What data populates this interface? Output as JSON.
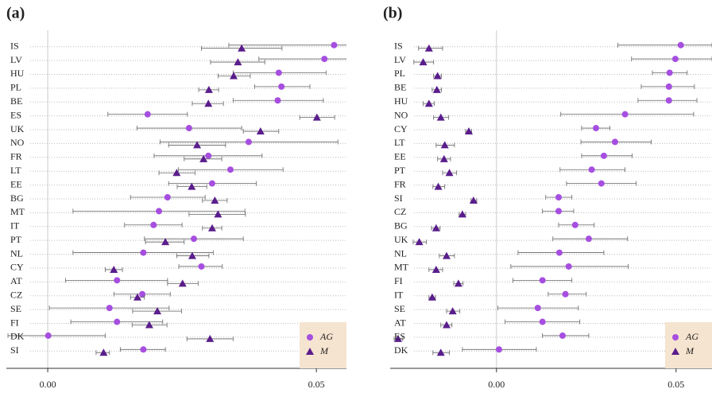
{
  "chart_data": [
    {
      "type": "dot",
      "title": "(a)",
      "categories": [
        "IS",
        "LV",
        "HU",
        "PL",
        "BE",
        "ES",
        "UK",
        "NO",
        "FR",
        "LT",
        "EE",
        "BG",
        "MT",
        "IT",
        "PT",
        "NL",
        "CY",
        "AT",
        "CZ",
        "SE",
        "FI",
        "DK",
        "SI"
      ],
      "series": [
        {
          "name": "AG",
          "color": "#a64ee0",
          "marker": "circle",
          "values": [
            0.0533,
            0.0515,
            0.043,
            0.0435,
            0.0428,
            0.0186,
            0.0263,
            0.0374,
            0.0299,
            0.034,
            0.0306,
            0.0223,
            0.0207,
            0.0197,
            0.0272,
            0.0178,
            0.0286,
            0.0129,
            0.0176,
            0.0115,
            0.0129,
            0.0001,
            0.0178
          ],
          "lower": [
            0.0337,
            0.0393,
            0.0345,
            0.0385,
            0.0345,
            0.0112,
            0.0166,
            0.0209,
            0.0198,
            0.0243,
            0.0225,
            0.0154,
            0.0047,
            0.0143,
            0.018,
            0.0047,
            0.0244,
            0.0033,
            0.0123,
            0.0003,
            0.0043,
            -0.0074,
            0.0135
          ],
          "upper": [
            0.0562,
            0.0562,
            0.0518,
            0.0488,
            0.0513,
            0.026,
            0.0361,
            0.054,
            0.0399,
            0.0438,
            0.0388,
            0.0293,
            0.0367,
            0.025,
            0.0364,
            0.0308,
            0.0325,
            0.0223,
            0.0228,
            0.0226,
            0.0214,
            0.0107,
            0.0219
          ]
        },
        {
          "name": "M",
          "color": "#5a1d8c",
          "marker": "triangle",
          "values": [
            0.0361,
            0.0354,
            0.0346,
            0.03,
            0.0299,
            0.0501,
            0.0396,
            0.0278,
            0.029,
            0.024,
            0.0268,
            0.0311,
            0.0317,
            0.0306,
            0.0219,
            0.0269,
            0.0123,
            0.0251,
            0.0167,
            0.0204,
            0.0189,
            0.0302,
            0.0104
          ],
          "lower": [
            0.0286,
            0.0303,
            0.0317,
            0.0281,
            0.0269,
            0.0469,
            0.0364,
            0.0225,
            0.0254,
            0.0207,
            0.0241,
            0.0288,
            0.0263,
            0.0288,
            0.0182,
            0.024,
            0.0107,
            0.0223,
            0.0154,
            0.0158,
            0.0157,
            0.0259,
            0.009
          ],
          "upper": [
            0.0436,
            0.0404,
            0.0377,
            0.0318,
            0.0327,
            0.0534,
            0.043,
            0.0331,
            0.0324,
            0.0274,
            0.0296,
            0.0334,
            0.0368,
            0.0324,
            0.0254,
            0.03,
            0.0139,
            0.028,
            0.018,
            0.0249,
            0.0222,
            0.0345,
            0.0115
          ]
        }
      ],
      "xlim": [
        -0.0077,
        0.0556
      ],
      "xticks": [
        {
          "value": 0,
          "label": "0.00"
        },
        {
          "value": 0.05,
          "label": "0.05"
        }
      ],
      "grid": true,
      "legend": "lower right",
      "legend_color": "#f5e4cf"
    },
    {
      "type": "dot",
      "title": "(b)",
      "categories": [
        "IS",
        "LV",
        "PL",
        "BE",
        "HU",
        "NO",
        "CY",
        "LT",
        "EE",
        "PT",
        "FR",
        "SI",
        "CZ",
        "BG",
        "UK",
        "NL",
        "MT",
        "FI",
        "IT",
        "SE",
        "AT",
        "ES",
        "DK"
      ],
      "series": [
        {
          "name": "AG",
          "color": "#a64ee0",
          "marker": "circle",
          "values": [
            0.0513,
            0.0498,
            0.0482,
            0.048,
            0.048,
            0.0358,
            0.0277,
            0.033,
            0.0299,
            0.0265,
            0.0292,
            0.0173,
            0.0173,
            0.0219,
            0.0257,
            0.0175,
            0.0201,
            0.0128,
            0.0192,
            0.0115,
            0.0128,
            0.0184,
            0.0007
          ],
          "lower": [
            0.0338,
            0.0376,
            0.0434,
            0.0403,
            0.0394,
            0.0179,
            0.0237,
            0.0235,
            0.0237,
            0.0177,
            0.0195,
            0.0137,
            0.0128,
            0.0173,
            0.0157,
            0.006,
            0.004,
            0.0046,
            0.0144,
            0.0004,
            0.0024,
            0.0128,
            -0.0095
          ],
          "upper": [
            0.06,
            0.06,
            0.0531,
            0.0551,
            0.0558,
            0.0549,
            0.0316,
            0.0431,
            0.0378,
            0.0358,
            0.0389,
            0.021,
            0.0215,
            0.0272,
            0.0365,
            0.0299,
            0.0367,
            0.021,
            0.025,
            0.0228,
            0.0232,
            0.0257,
            0.0111
          ]
        },
        {
          "name": "M",
          "color": "#5a1d8c",
          "marker": "triangle",
          "values": [
            -0.0188,
            -0.0204,
            -0.0164,
            -0.0166,
            -0.0188,
            -0.0155,
            -0.0077,
            -0.0144,
            -0.0146,
            -0.0131,
            -0.0162,
            -0.0064,
            -0.0095,
            -0.0168,
            -0.0215,
            -0.0139,
            -0.0168,
            -0.0106,
            -0.0179,
            -0.0122,
            -0.0139,
            -0.0274,
            -0.0155
          ],
          "lower": [
            -0.0217,
            -0.023,
            -0.0175,
            -0.0179,
            -0.0204,
            -0.0175,
            -0.0086,
            -0.0168,
            -0.0164,
            -0.015,
            -0.0177,
            -0.0071,
            -0.0104,
            -0.0181,
            -0.0232,
            -0.0159,
            -0.0188,
            -0.0119,
            -0.0188,
            -0.0139,
            -0.0155,
            -0.0285,
            -0.0177
          ],
          "upper": [
            -0.015,
            -0.0175,
            -0.0153,
            -0.0153,
            -0.0173,
            -0.0133,
            -0.0069,
            -0.0117,
            -0.0128,
            -0.0111,
            -0.0144,
            -0.0055,
            -0.0086,
            -0.0157,
            -0.0195,
            -0.0117,
            -0.015,
            -0.0093,
            -0.017,
            -0.0102,
            -0.0124,
            -0.0261,
            -0.0131
          ]
        }
      ],
      "xlim": [
        -0.0296,
        0.06
      ],
      "xticks": [
        {
          "value": 0,
          "label": "0.00"
        },
        {
          "value": 0.05,
          "label": "0.05"
        }
      ],
      "grid": true,
      "legend": "lower right",
      "legend_color": "#f5e4cf"
    }
  ]
}
